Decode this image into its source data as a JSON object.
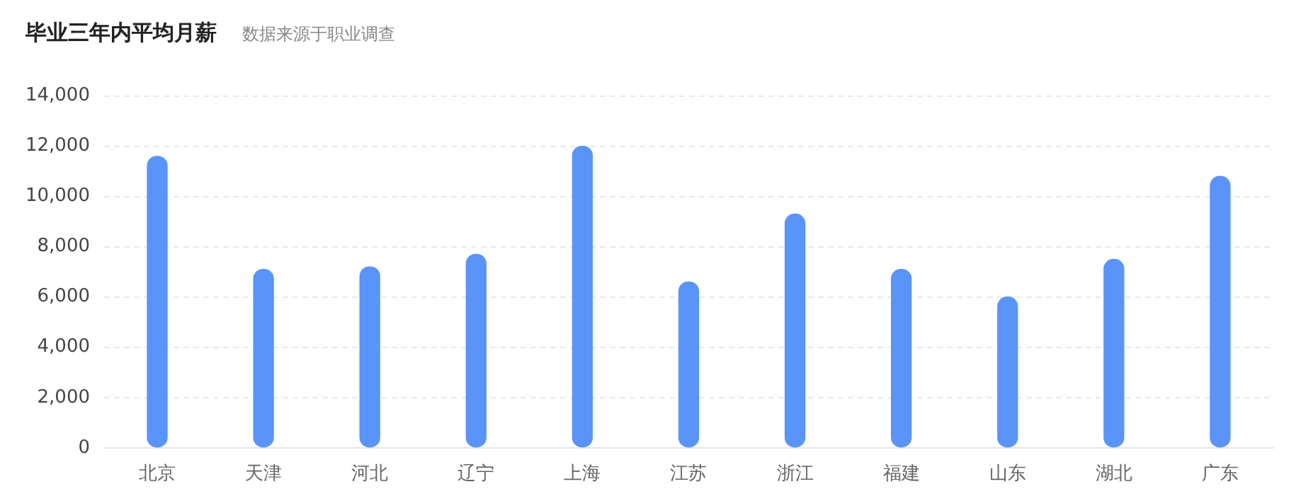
{
  "chart_data": {
    "type": "bar",
    "title": "毕业三年内平均月薪",
    "subtitle": "数据来源于职业调查",
    "categories": [
      "北京",
      "天津",
      "河北",
      "辽宁",
      "上海",
      "江苏",
      "浙江",
      "福建",
      "山东",
      "湖北",
      "广东"
    ],
    "values": [
      11600,
      7100,
      7200,
      7700,
      12000,
      6600,
      9300,
      7100,
      6000,
      7500,
      10800
    ],
    "color": "#5b94f8",
    "ylim": [
      0,
      14000
    ],
    "yticks": [
      0,
      {
        "value": 2000,
        "label": "2,000"
      },
      {
        "value": 4000,
        "label": "4,000"
      },
      {
        "value": 6000,
        "label": "6,000"
      },
      {
        "value": 8000,
        "label": "8,000"
      },
      {
        "value": 10000,
        "label": "10,000"
      },
      {
        "value": 12000,
        "label": "12,000"
      },
      {
        "value": 14000,
        "label": "14,000"
      }
    ],
    "grid": "y"
  }
}
